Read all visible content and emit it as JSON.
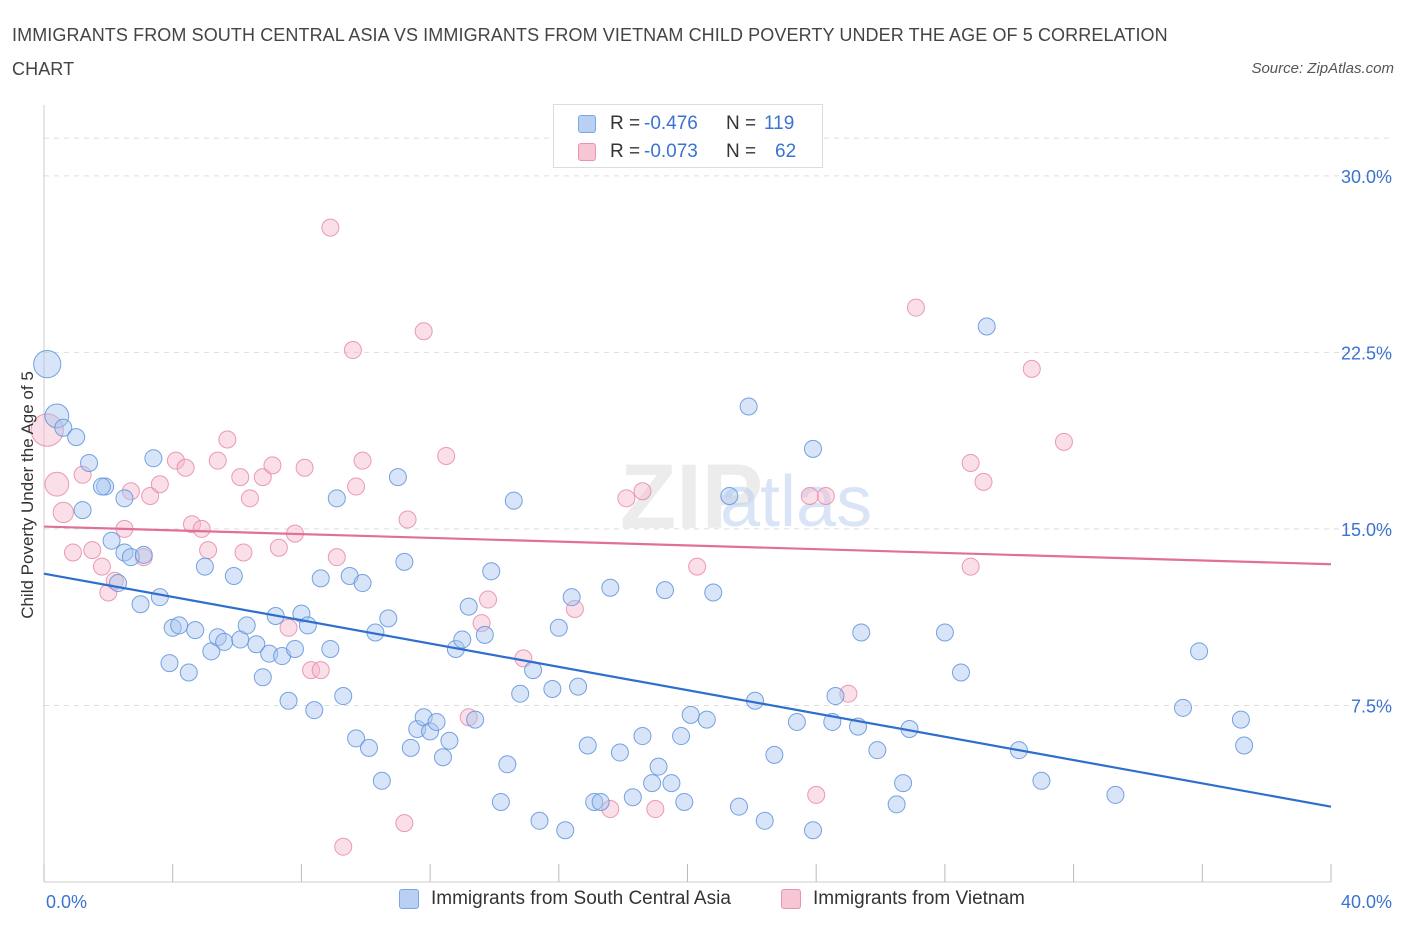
{
  "title": "IMMIGRANTS FROM SOUTH CENTRAL ASIA VS IMMIGRANTS FROM VIETNAM CHILD POVERTY UNDER THE AGE OF 5 CORRELATION CHART",
  "source": "Source: ZipAtlas.com",
  "watermark": {
    "zip": "ZIP",
    "atlas": "atlas"
  },
  "legend": {
    "blue": {
      "r_label": "R =",
      "r_value": "-0.476",
      "n_label": "N =",
      "n_value": "119"
    },
    "pink": {
      "r_label": "R =",
      "r_value": "-0.073",
      "n_label": "N =",
      "n_value": "62"
    }
  },
  "bottom_legend": {
    "blue": "Immigrants from South Central Asia",
    "pink": "Immigrants from Vietnam"
  },
  "colors": {
    "blue_fill": "#a9c6f0",
    "blue_stroke": "#5f93dc",
    "blue_line": "#2f6fcc",
    "pink_fill": "#f5b8cb",
    "pink_stroke": "#e88aa8",
    "pink_line": "#e0709a",
    "tick_label": "#3b73d0",
    "grid": "#dddddd"
  },
  "chart_data": {
    "type": "scatter",
    "title": "IMMIGRANTS FROM SOUTH CENTRAL ASIA VS IMMIGRANTS FROM VIETNAM CHILD POVERTY UNDER THE AGE OF 5 CORRELATION CHART",
    "xlabel": "",
    "ylabel": "Child Poverty Under the Age of 5",
    "xlim": [
      0,
      40
    ],
    "ylim": [
      0,
      32.5
    ],
    "x_tick_labels": [
      {
        "value": 0,
        "label": "0.0%"
      },
      {
        "value": 40,
        "label": "40.0%"
      }
    ],
    "y_tick_labels": [
      {
        "value": 7.5,
        "label": "7.5%"
      },
      {
        "value": 15,
        "label": "15.0%"
      },
      {
        "value": 22.5,
        "label": "22.5%"
      },
      {
        "value": 30,
        "label": "30.0%"
      }
    ],
    "x_minor_ticks": [
      0,
      4,
      8,
      12,
      16,
      20,
      24,
      28,
      32,
      36,
      40
    ],
    "series": [
      {
        "name": "Immigrants from South Central Asia",
        "color": "blue",
        "R": -0.476,
        "N": 119,
        "trend": {
          "x": [
            0,
            40
          ],
          "y": [
            13.1,
            3.2
          ]
        },
        "points": [
          [
            0.1,
            22.0,
            1.6
          ],
          [
            0.4,
            19.8,
            1.4
          ],
          [
            0.6,
            19.3,
            1.0
          ],
          [
            1.0,
            18.9,
            1.0
          ],
          [
            1.4,
            17.8,
            1.0
          ],
          [
            1.2,
            15.8,
            1.0
          ],
          [
            1.9,
            16.8,
            1.0
          ],
          [
            2.1,
            14.5,
            1.0
          ],
          [
            2.5,
            16.3,
            1.0
          ],
          [
            2.5,
            14.0,
            1.0
          ],
          [
            2.3,
            12.7,
            1.0
          ],
          [
            2.7,
            13.8,
            1.0
          ],
          [
            3.1,
            13.9,
            1.0
          ],
          [
            3.0,
            11.8,
            1.0
          ],
          [
            3.4,
            18.0,
            1.0
          ],
          [
            3.6,
            12.1,
            1.0
          ],
          [
            3.9,
            9.3,
            1.0
          ],
          [
            4.0,
            10.8,
            1.0
          ],
          [
            4.2,
            10.9,
            1.0
          ],
          [
            4.5,
            8.9,
            1.0
          ],
          [
            4.7,
            10.7,
            1.0
          ],
          [
            5.0,
            13.4,
            1.0
          ],
          [
            5.2,
            9.8,
            1.0
          ],
          [
            5.4,
            10.4,
            1.0
          ],
          [
            5.6,
            10.2,
            1.0
          ],
          [
            5.9,
            13.0,
            1.0
          ],
          [
            6.1,
            10.3,
            1.0
          ],
          [
            6.3,
            10.9,
            1.0
          ],
          [
            6.6,
            10.1,
            1.0
          ],
          [
            6.8,
            8.7,
            1.0
          ],
          [
            7.0,
            9.7,
            1.0
          ],
          [
            7.2,
            11.3,
            1.0
          ],
          [
            7.4,
            9.6,
            1.0
          ],
          [
            7.6,
            7.7,
            1.0
          ],
          [
            7.8,
            9.9,
            1.0
          ],
          [
            8.0,
            11.4,
            1.0
          ],
          [
            8.2,
            10.9,
            1.0
          ],
          [
            8.4,
            7.3,
            1.0
          ],
          [
            8.6,
            12.9,
            1.0
          ],
          [
            8.9,
            9.9,
            1.0
          ],
          [
            9.1,
            16.3,
            1.0
          ],
          [
            9.3,
            7.9,
            1.0
          ],
          [
            9.5,
            13.0,
            1.0
          ],
          [
            9.7,
            6.1,
            1.0
          ],
          [
            9.9,
            12.7,
            1.0
          ],
          [
            10.1,
            5.7,
            1.0
          ],
          [
            10.3,
            10.6,
            1.0
          ],
          [
            10.5,
            4.3,
            1.0
          ],
          [
            10.7,
            11.2,
            1.0
          ],
          [
            11.0,
            17.2,
            1.0
          ],
          [
            11.2,
            13.6,
            1.0
          ],
          [
            11.4,
            5.7,
            1.0
          ],
          [
            11.6,
            6.5,
            1.0
          ],
          [
            11.8,
            7.0,
            1.0
          ],
          [
            12.0,
            6.4,
            1.0
          ],
          [
            12.2,
            6.8,
            1.0
          ],
          [
            12.4,
            5.3,
            1.0
          ],
          [
            12.6,
            6.0,
            1.0
          ],
          [
            12.8,
            9.9,
            1.0
          ],
          [
            13.0,
            10.3,
            1.0
          ],
          [
            13.2,
            11.7,
            1.0
          ],
          [
            13.4,
            6.9,
            1.0
          ],
          [
            13.7,
            10.5,
            1.0
          ],
          [
            13.9,
            13.2,
            1.0
          ],
          [
            14.2,
            3.4,
            1.0
          ],
          [
            14.4,
            5.0,
            1.0
          ],
          [
            14.6,
            16.2,
            1.0
          ],
          [
            14.8,
            8.0,
            1.0
          ],
          [
            15.2,
            9.0,
            1.0
          ],
          [
            15.4,
            2.6,
            1.0
          ],
          [
            15.8,
            8.2,
            1.0
          ],
          [
            16.0,
            10.8,
            1.0
          ],
          [
            16.2,
            2.2,
            1.0
          ],
          [
            16.4,
            12.1,
            1.0
          ],
          [
            16.6,
            8.3,
            1.0
          ],
          [
            16.9,
            5.8,
            1.0
          ],
          [
            17.1,
            3.4,
            1.0
          ],
          [
            17.3,
            3.4,
            1.0
          ],
          [
            17.6,
            12.5,
            1.0
          ],
          [
            17.9,
            5.5,
            1.0
          ],
          [
            18.3,
            3.6,
            1.0
          ],
          [
            18.6,
            6.2,
            1.0
          ],
          [
            18.9,
            4.2,
            1.0
          ],
          [
            19.1,
            4.9,
            1.0
          ],
          [
            19.3,
            12.4,
            1.0
          ],
          [
            19.5,
            4.2,
            1.0
          ],
          [
            19.8,
            6.2,
            1.0
          ],
          [
            19.9,
            3.4,
            1.0
          ],
          [
            20.1,
            7.1,
            1.0
          ],
          [
            20.6,
            6.9,
            1.0
          ],
          [
            20.8,
            12.3,
            1.0
          ],
          [
            21.3,
            16.4,
            1.0
          ],
          [
            21.6,
            3.2,
            1.0
          ],
          [
            21.9,
            20.2,
            1.0
          ],
          [
            22.1,
            7.7,
            1.0
          ],
          [
            22.4,
            2.6,
            1.0
          ],
          [
            22.7,
            5.4,
            1.0
          ],
          [
            23.4,
            6.8,
            1.0
          ],
          [
            23.9,
            18.4,
            1.0
          ],
          [
            23.9,
            2.2,
            1.0
          ],
          [
            24.5,
            6.8,
            1.0
          ],
          [
            24.6,
            7.9,
            1.0
          ],
          [
            25.3,
            6.6,
            1.0
          ],
          [
            25.4,
            10.6,
            1.0
          ],
          [
            25.9,
            5.6,
            1.0
          ],
          [
            26.5,
            3.3,
            1.0
          ],
          [
            26.7,
            4.2,
            1.0
          ],
          [
            26.9,
            6.5,
            1.0
          ],
          [
            28.0,
            10.6,
            1.0
          ],
          [
            28.5,
            8.9,
            1.0
          ],
          [
            29.3,
            23.6,
            1.0
          ],
          [
            30.3,
            5.6,
            1.0
          ],
          [
            31.0,
            4.3,
            1.0
          ],
          [
            33.3,
            3.7,
            1.0
          ],
          [
            35.4,
            7.4,
            1.0
          ],
          [
            35.9,
            9.8,
            1.0
          ],
          [
            37.2,
            6.9,
            1.0
          ],
          [
            37.3,
            5.8,
            1.0
          ],
          [
            1.8,
            16.8,
            1.0
          ]
        ]
      },
      {
        "name": "Immigrants from Vietnam",
        "color": "pink",
        "R": -0.073,
        "N": 62,
        "trend": {
          "x": [
            0,
            40
          ],
          "y": [
            15.1,
            13.5
          ]
        },
        "points": [
          [
            0.1,
            19.2,
            1.9
          ],
          [
            0.4,
            16.9,
            1.4
          ],
          [
            0.6,
            15.7,
            1.2
          ],
          [
            0.9,
            14.0,
            1.0
          ],
          [
            1.2,
            17.3,
            1.0
          ],
          [
            1.5,
            14.1,
            1.0
          ],
          [
            1.8,
            13.4,
            1.0
          ],
          [
            2.0,
            12.3,
            1.0
          ],
          [
            2.2,
            12.8,
            1.0
          ],
          [
            2.5,
            15.0,
            1.0
          ],
          [
            2.7,
            16.6,
            1.0
          ],
          [
            3.1,
            13.8,
            1.0
          ],
          [
            3.3,
            16.4,
            1.0
          ],
          [
            3.6,
            16.9,
            1.0
          ],
          [
            4.1,
            17.9,
            1.0
          ],
          [
            4.4,
            17.6,
            1.0
          ],
          [
            4.6,
            15.2,
            1.0
          ],
          [
            4.9,
            15.0,
            1.0
          ],
          [
            5.1,
            14.1,
            1.0
          ],
          [
            5.4,
            17.9,
            1.0
          ],
          [
            5.7,
            18.8,
            1.0
          ],
          [
            6.1,
            17.2,
            1.0
          ],
          [
            6.2,
            14.0,
            1.0
          ],
          [
            6.4,
            16.3,
            1.0
          ],
          [
            6.8,
            17.2,
            1.0
          ],
          [
            7.1,
            17.7,
            1.0
          ],
          [
            7.3,
            14.2,
            1.0
          ],
          [
            7.6,
            10.8,
            1.0
          ],
          [
            7.8,
            14.8,
            1.0
          ],
          [
            8.1,
            17.6,
            1.0
          ],
          [
            8.3,
            9.0,
            1.0
          ],
          [
            8.6,
            9.0,
            1.0
          ],
          [
            8.9,
            27.8,
            1.0
          ],
          [
            9.1,
            13.8,
            1.0
          ],
          [
            9.3,
            1.5,
            1.0
          ],
          [
            9.6,
            22.6,
            1.0
          ],
          [
            9.7,
            16.8,
            1.0
          ],
          [
            9.9,
            17.9,
            1.0
          ],
          [
            11.2,
            2.5,
            1.0
          ],
          [
            11.3,
            15.4,
            1.0
          ],
          [
            11.8,
            23.4,
            1.0
          ],
          [
            12.5,
            18.1,
            1.0
          ],
          [
            13.2,
            7.0,
            1.0
          ],
          [
            13.6,
            11.0,
            1.0
          ],
          [
            13.8,
            12.0,
            1.0
          ],
          [
            14.9,
            9.5,
            1.0
          ],
          [
            16.5,
            11.6,
            1.0
          ],
          [
            17.6,
            3.1,
            1.0
          ],
          [
            18.1,
            16.3,
            1.0
          ],
          [
            18.6,
            16.6,
            1.0
          ],
          [
            19.0,
            3.1,
            1.0
          ],
          [
            20.3,
            13.4,
            1.0
          ],
          [
            25.0,
            8.0,
            1.0
          ],
          [
            24.0,
            3.7,
            1.0
          ],
          [
            24.3,
            16.4,
            1.0
          ],
          [
            27.1,
            24.4,
            1.0
          ],
          [
            28.8,
            17.8,
            1.0
          ],
          [
            28.8,
            13.4,
            1.0
          ],
          [
            29.2,
            17.0,
            1.0
          ],
          [
            30.7,
            21.8,
            1.0
          ],
          [
            31.7,
            18.7,
            1.0
          ],
          [
            23.8,
            16.4,
            1.0
          ]
        ]
      }
    ]
  }
}
